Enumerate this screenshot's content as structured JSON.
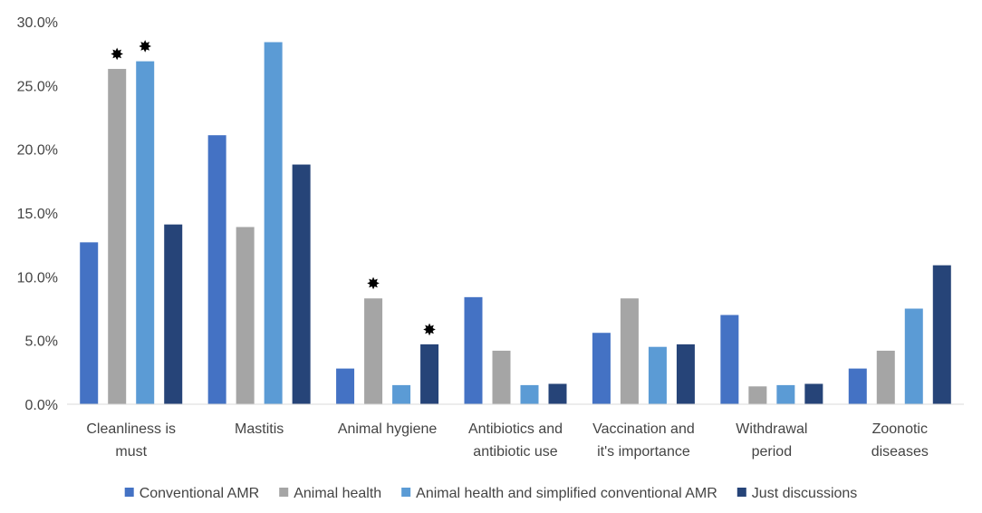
{
  "chart_data": {
    "type": "bar",
    "title": "",
    "xlabel": "",
    "ylabel": "",
    "ylim": [
      0,
      30
    ],
    "y_ticks": [
      "0.0%",
      "5.0%",
      "10.0%",
      "15.0%",
      "20.0%",
      "25.0%",
      "30.0%"
    ],
    "y_tick_values": [
      0,
      5,
      10,
      15,
      20,
      25,
      30
    ],
    "grid": false,
    "legend_position": "bottom",
    "significance_marker": "✸",
    "categories": [
      [
        "Cleanliness is",
        "must"
      ],
      [
        "Mastitis"
      ],
      [
        "Animal hygiene"
      ],
      [
        "Antibiotics and",
        "antibiotic use"
      ],
      [
        "Vaccination and",
        "it's importance"
      ],
      [
        "Withdrawal",
        "period"
      ],
      [
        "Zoonotic",
        "diseases"
      ]
    ],
    "series": [
      {
        "name": "Conventional AMR",
        "color": "#4472C4",
        "values": [
          12.7,
          21.1,
          2.8,
          8.4,
          5.6,
          7.0,
          2.8
        ]
      },
      {
        "name": "Animal health",
        "color": "#A5A5A5",
        "values": [
          26.3,
          13.9,
          8.3,
          4.2,
          8.3,
          1.4,
          4.2
        ]
      },
      {
        "name": "Animal health and simplified conventional AMR",
        "color": "#5B9BD5",
        "values": [
          26.9,
          28.4,
          1.5,
          1.5,
          4.5,
          1.5,
          7.5
        ]
      },
      {
        "name": "Just discussions",
        "color": "#264478",
        "values": [
          14.1,
          18.8,
          4.7,
          1.6,
          4.7,
          1.6,
          10.9
        ]
      }
    ],
    "significance": [
      {
        "category": 0,
        "series": 1
      },
      {
        "category": 0,
        "series": 2
      },
      {
        "category": 2,
        "series": 1
      },
      {
        "category": 2,
        "series": 3
      }
    ]
  }
}
